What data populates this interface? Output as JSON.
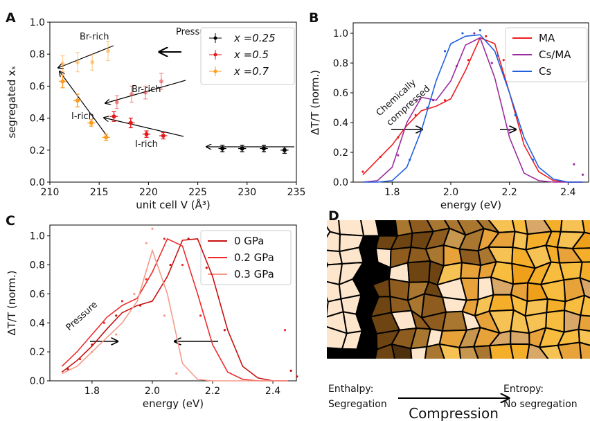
{
  "chart_data": [
    {
      "type": "errorbar",
      "panel": "A",
      "xlabel": "unit cell V (Å³)",
      "ylabel": "segregated xₛ",
      "xlim": [
        210,
        235
      ],
      "xticks": [
        210,
        215,
        220,
        225,
        230,
        235
      ],
      "ylim": [
        0,
        1
      ],
      "yticks": [
        {
          "value": 0,
          "label": "0.0"
        },
        0.2,
        0.4,
        0.6,
        0.8,
        {
          "value": 1,
          "label": "1.0"
        }
      ],
      "legend": "upper right",
      "annotations": [
        "Br-rich",
        "Br-rich",
        "I-rich",
        "I-rich",
        "Pressure"
      ],
      "series": [
        {
          "name": "x =0.25",
          "color": "#000000",
          "x": [
            227.5,
            229.5,
            231.7,
            233.8
          ],
          "values": [
            0.21,
            0.21,
            0.21,
            0.2
          ],
          "errors": [
            0.02,
            0.02,
            0.02,
            0.02
          ],
          "x_errors": [
            0.4,
            0.4,
            0.4,
            0.4
          ]
        },
        {
          "name": "x =0.5",
          "color": "#e31a1c",
          "x": [
            216.5,
            218.2,
            219.8,
            221.5
          ],
          "values": [
            0.41,
            0.37,
            0.3,
            0.29
          ],
          "errors": [
            0.03,
            0.03,
            0.02,
            0.02
          ],
          "x_errors": [
            0.4,
            0.4,
            0.4,
            0.4
          ],
          "br_x": [
            216.8,
            218.3,
            219.7,
            221.3
          ],
          "br_values": [
            0.5,
            0.55,
            0.56,
            0.63
          ],
          "br_errors": [
            0.04,
            0.05,
            0.04,
            0.05
          ]
        },
        {
          "name": "x =0.7",
          "color": "#ff9a1a",
          "x": [
            211.3,
            212.8,
            214.2,
            215.7
          ],
          "values": [
            0.63,
            0.51,
            0.37,
            0.28
          ],
          "errors": [
            0.04,
            0.04,
            0.02,
            0.02
          ],
          "x_errors": [
            0.4,
            0.4,
            0.4,
            0.4
          ],
          "br_x": [
            211.3,
            212.8,
            214.3,
            215.9
          ],
          "br_values": [
            0.74,
            0.75,
            0.75,
            0.82
          ],
          "br_errors": [
            0.05,
            0.06,
            0.05,
            0.06
          ]
        }
      ]
    },
    {
      "type": "line",
      "panel": "B",
      "xlabel": "energy (eV)",
      "ylabel": "ΔT/T (norm.)",
      "xlim": [
        1.667,
        2.47
      ],
      "xticks": [
        1.8,
        {
          "value": 2,
          "label": "2.0"
        },
        2.2,
        2.4
      ],
      "ylim": [
        0,
        1.07
      ],
      "yticks": [
        {
          "value": 0,
          "label": "0.0"
        },
        0.2,
        0.4,
        0.6,
        0.8,
        {
          "value": 1,
          "label": "1.0"
        }
      ],
      "legend": "upper right",
      "annotations": [
        "Chemically",
        "compressed"
      ],
      "x": [
        1.7,
        1.75,
        1.8,
        1.85,
        1.9,
        1.95,
        2.0,
        2.05,
        2.1,
        2.15,
        2.2,
        2.25,
        2.3,
        2.35,
        2.4,
        2.45
      ],
      "series": [
        {
          "name": "MA",
          "color": "#ee1c1c",
          "values": [
            0.05,
            0.15,
            0.25,
            0.38,
            0.48,
            0.51,
            0.56,
            0.75,
            0.97,
            0.93,
            0.6,
            0.25,
            0.07,
            0.01,
            0,
            0
          ],
          "points_x": [
            1.7,
            1.76,
            1.82,
            1.88,
            1.98,
            2.06,
            2.12,
            2.18,
            2.24
          ],
          "points": [
            0.07,
            0.17,
            0.3,
            0.45,
            0.55,
            0.82,
            0.98,
            0.82,
            0.35
          ]
        },
        {
          "name": "Cs/MA",
          "color": "#9b2b9e",
          "values": [
            0,
            0.01,
            0.1,
            0.4,
            0.57,
            0.55,
            0.68,
            0.92,
            0.97,
            0.7,
            0.3,
            0.06,
            0.01,
            0,
            0,
            0
          ],
          "points_x": [
            1.82,
            1.88,
            1.94,
            2.02,
            2.08,
            2.14,
            2.2,
            2.42,
            2.45
          ],
          "points": [
            0.18,
            0.55,
            0.55,
            0.78,
            1.0,
            0.8,
            0.35,
            0.12,
            0.05
          ]
        },
        {
          "name": "Cs",
          "color": "#1f5fe0",
          "values": [
            0,
            0,
            0.01,
            0.1,
            0.35,
            0.68,
            0.93,
            0.98,
            0.99,
            0.88,
            0.6,
            0.3,
            0.1,
            0.02,
            0,
            0
          ],
          "points_x": [
            1.86,
            1.92,
            1.98,
            2.04,
            2.1,
            2.16,
            2.22,
            2.28
          ],
          "points": [
            0.15,
            0.5,
            0.88,
            1.0,
            1.02,
            0.85,
            0.45,
            0.15
          ]
        }
      ]
    },
    {
      "type": "line",
      "panel": "C",
      "xlabel": "energy (eV)",
      "ylabel": "ΔT/T (norm.)",
      "xlim": [
        1.66,
        2.478
      ],
      "xticks": [
        1.8,
        {
          "value": 2,
          "label": "2.0"
        },
        2.2,
        2.4
      ],
      "ylim": [
        0,
        1.075
      ],
      "yticks": [
        {
          "value": 0,
          "label": "0.0"
        },
        0.2,
        0.4,
        0.6,
        0.8,
        {
          "value": 1,
          "label": "1.0"
        }
      ],
      "legend": "upper right",
      "annotations": [
        "Pressure"
      ],
      "x": [
        1.7,
        1.75,
        1.8,
        1.85,
        1.9,
        1.95,
        2.0,
        2.05,
        2.1,
        2.15,
        2.2,
        2.25,
        2.3,
        2.35,
        2.4,
        2.45
      ],
      "series": [
        {
          "name": "0 GPa",
          "color": "#c81010",
          "values": [
            0.06,
            0.14,
            0.24,
            0.36,
            0.47,
            0.52,
            0.55,
            0.72,
            0.97,
            0.98,
            0.72,
            0.35,
            0.1,
            0.02,
            0,
            0
          ],
          "points_x": [
            1.72,
            1.8,
            1.88,
            1.96,
            2.06,
            2.12,
            2.18,
            2.24,
            2.46,
            2.48
          ],
          "points": [
            0.08,
            0.25,
            0.45,
            0.52,
            0.8,
            0.98,
            0.78,
            0.35,
            0.07,
            0.03
          ]
        },
        {
          "name": "0.2 GPa",
          "color": "#ee2a2a",
          "values": [
            0.1,
            0.2,
            0.32,
            0.44,
            0.52,
            0.57,
            0.75,
            0.98,
            0.93,
            0.6,
            0.25,
            0.06,
            0.01,
            0,
            0,
            0
          ],
          "points_x": [
            1.76,
            1.84,
            1.9,
            1.98,
            2.04,
            2.1,
            2.16,
            2.44
          ],
          "points": [
            0.15,
            0.4,
            0.55,
            0.7,
            0.98,
            0.8,
            0.45,
            0.35
          ]
        },
        {
          "name": "0.3 GPa",
          "color": "#f59a8a",
          "values": [
            0.05,
            0.1,
            0.2,
            0.3,
            0.4,
            0.55,
            0.9,
            0.6,
            0.12,
            0.01,
            0,
            0,
            0,
            0,
            0,
            0
          ],
          "points_x": [
            1.8,
            1.88,
            1.94,
            1.98,
            2.0,
            2.04,
            2.08
          ],
          "points": [
            0.2,
            0.32,
            0.6,
            0.95,
            1.05,
            0.45,
            0.05
          ]
        }
      ]
    }
  ],
  "diagram": {
    "panel": "D",
    "left_label": [
      "Enthalpy:",
      "Segregation"
    ],
    "right_label": [
      "Entropy:",
      "No segregation"
    ],
    "arrow_label": "Compression"
  }
}
